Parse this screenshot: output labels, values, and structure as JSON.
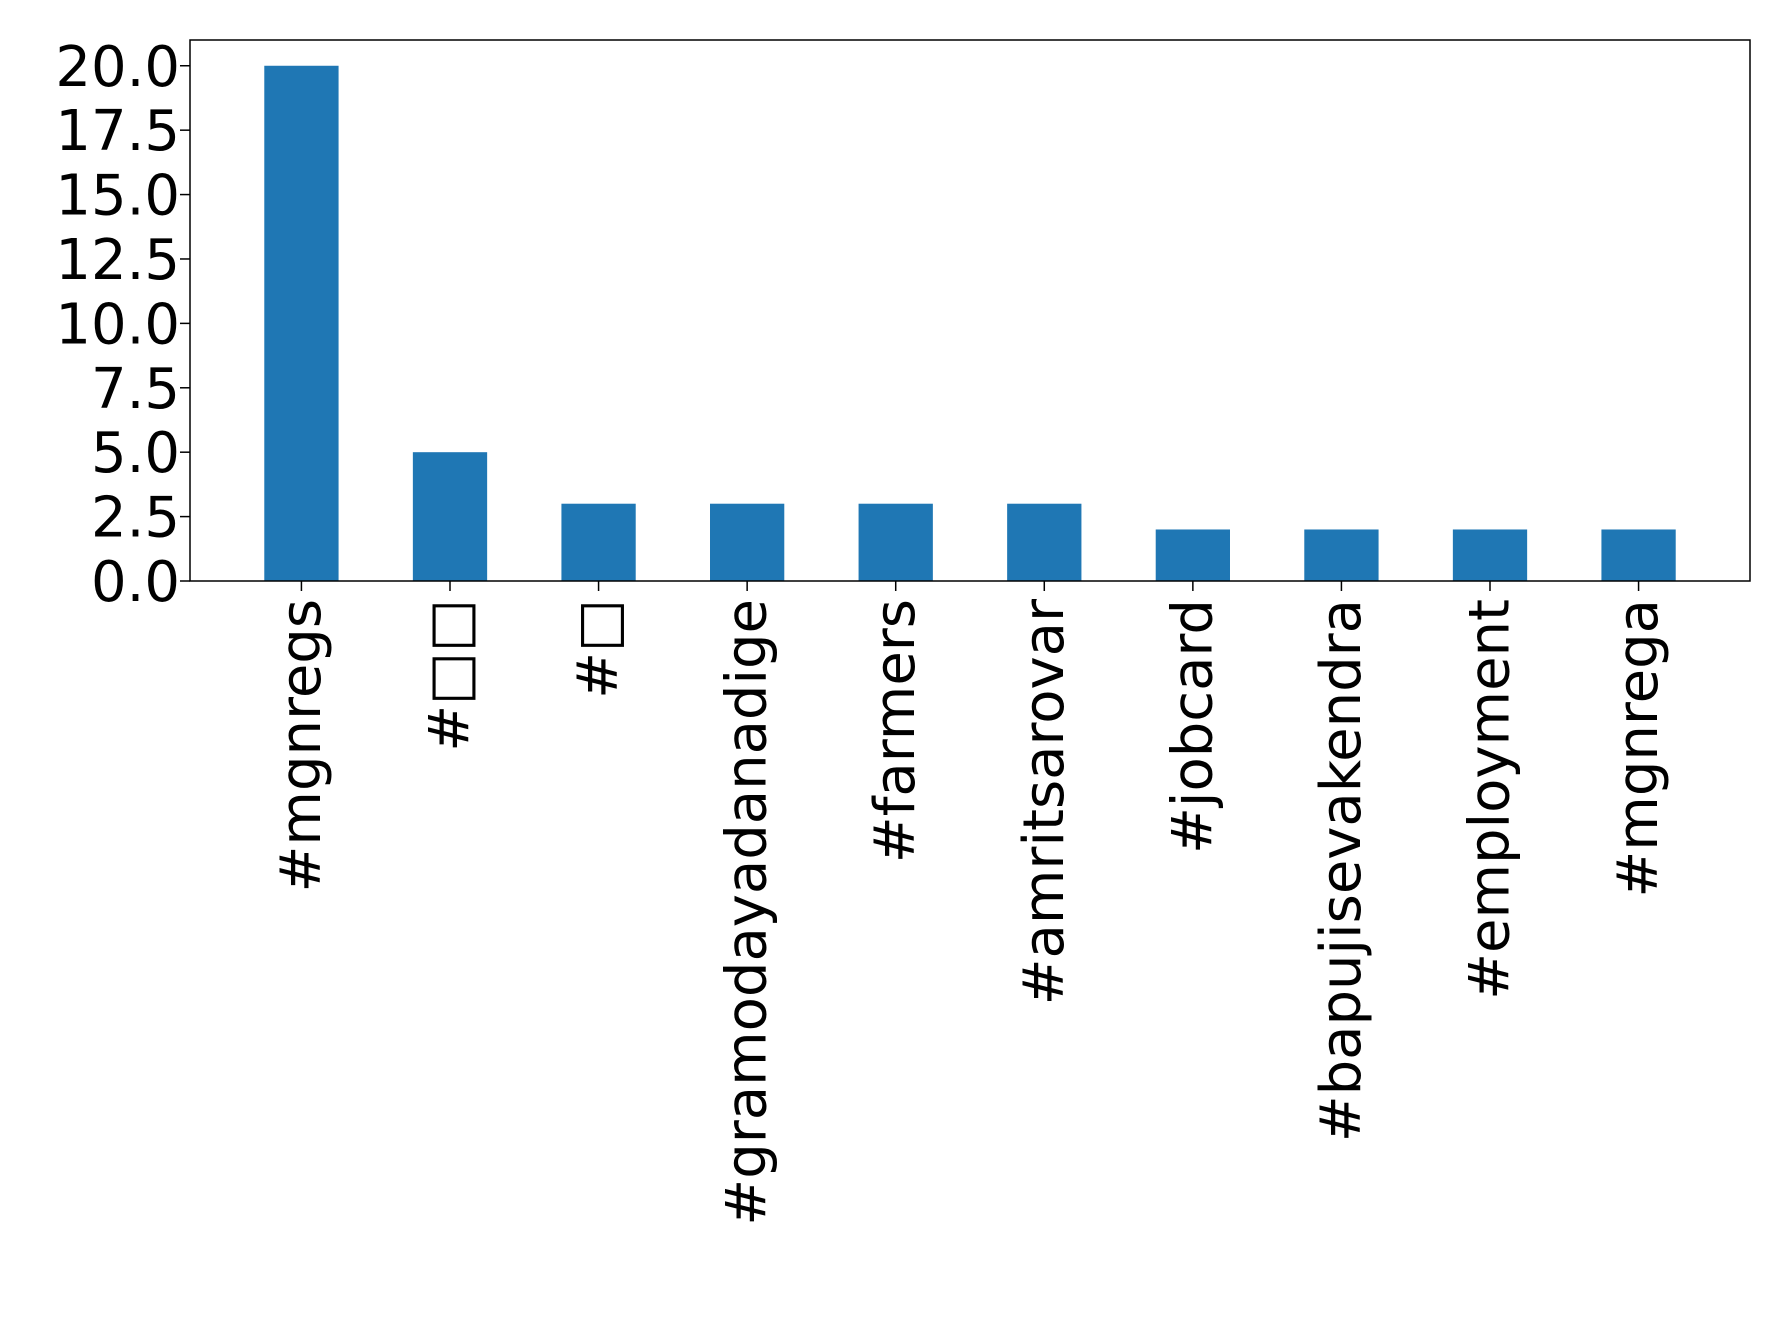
{
  "chart_data": {
    "type": "bar",
    "categories": [
      "#mgnregs",
      "#□□",
      "#□",
      "#gramodayadanadige",
      "#farmers",
      "#amritsarovar",
      "#jobcard",
      "#bapujisevakendra",
      "#employment",
      "#mgnrega"
    ],
    "values": [
      20,
      5,
      3,
      3,
      3,
      3,
      2,
      2,
      2,
      2
    ],
    "ylim": [
      0,
      21
    ],
    "yticks": [
      "0.0",
      "2.5",
      "5.0",
      "7.5",
      "10.0",
      "12.5",
      "15.0",
      "17.5",
      "20.0"
    ],
    "bar_color": "#1f77b4",
    "grid": false,
    "legend": "none"
  }
}
